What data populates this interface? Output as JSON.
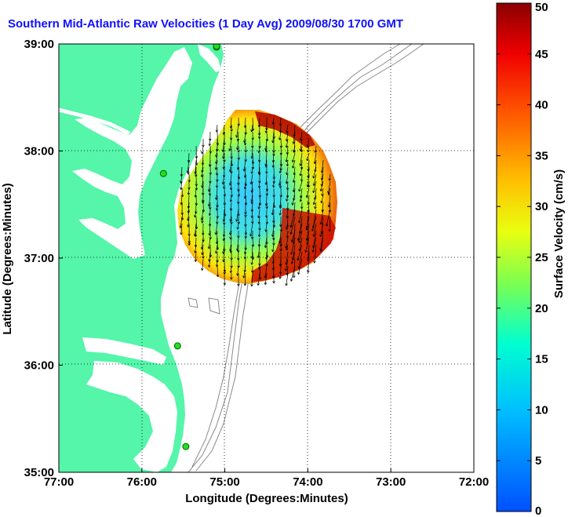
{
  "title": "Southern Mid-Atlantic Raw Velocities (1 Day Avg) 2009/08/30 1700 GMT",
  "x_axis": {
    "label": "Longitude (Degrees:Minutes)",
    "ticks": [
      "77:00",
      "76:00",
      "75:00",
      "74:00",
      "73:00",
      "72:00"
    ]
  },
  "y_axis": {
    "label": "Latitude (Degrees:Minutes)",
    "ticks": [
      "39:00",
      "38:00",
      "37:00",
      "36:00",
      "35:00"
    ]
  },
  "colorbar": {
    "label": "Surface Velocity (cm/s)",
    "ticks": [
      "50",
      "45",
      "40",
      "35",
      "30",
      "25",
      "20",
      "15",
      "10",
      "5",
      "0"
    ],
    "min": 0,
    "max": 50
  },
  "colors": {
    "land": "#55f5aa",
    "ocean": "#ffffff",
    "title": "#1010ff",
    "bathymetry": "#8a8a8a",
    "station": "#22dd22"
  },
  "map_extent": {
    "lon_min": -77,
    "lon_max": -72,
    "lat_min": 35,
    "lat_max": 39
  },
  "stations": [
    {
      "lon": -75.1,
      "lat": 38.97
    },
    {
      "lon": -75.1,
      "lat": 38.98
    },
    {
      "lon": -75.74,
      "lat": 37.79
    },
    {
      "lon": -75.57,
      "lat": 36.18
    },
    {
      "lon": -75.47,
      "lat": 35.24
    }
  ]
}
